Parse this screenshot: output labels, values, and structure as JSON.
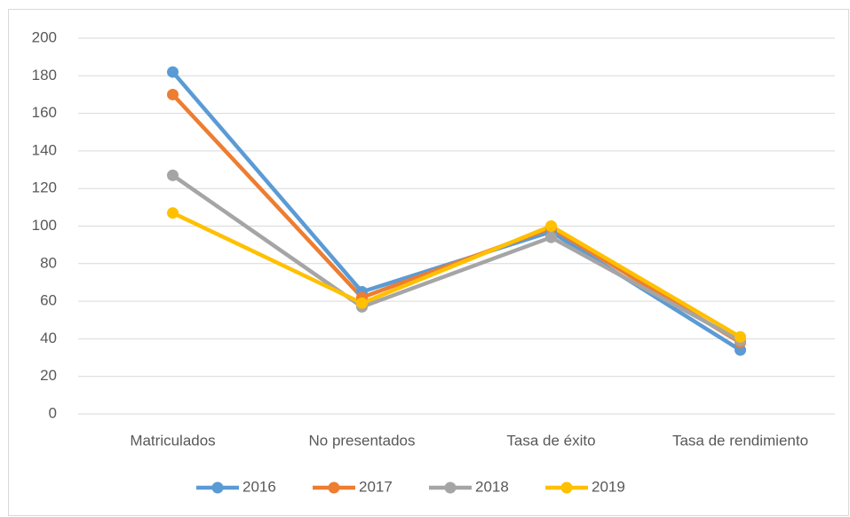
{
  "chart_data": {
    "type": "line",
    "categories": [
      "Matriculados",
      "No presentados",
      "Tasa de éxito",
      "Tasa de rendimiento"
    ],
    "series": [
      {
        "name": "2016",
        "color": "#5b9bd5",
        "values": [
          182,
          65,
          97,
          34
        ]
      },
      {
        "name": "2017",
        "color": "#ed7d31",
        "values": [
          170,
          62,
          99,
          38
        ]
      },
      {
        "name": "2018",
        "color": "#a5a5a5",
        "values": [
          127,
          57,
          94,
          39
        ]
      },
      {
        "name": "2019",
        "color": "#ffc000",
        "values": [
          107,
          59,
          100,
          41
        ]
      }
    ],
    "ylim": [
      0,
      200
    ],
    "yticks": [
      0,
      20,
      40,
      60,
      80,
      100,
      120,
      140,
      160,
      180,
      200
    ],
    "grid": true,
    "legend": "bottom"
  }
}
